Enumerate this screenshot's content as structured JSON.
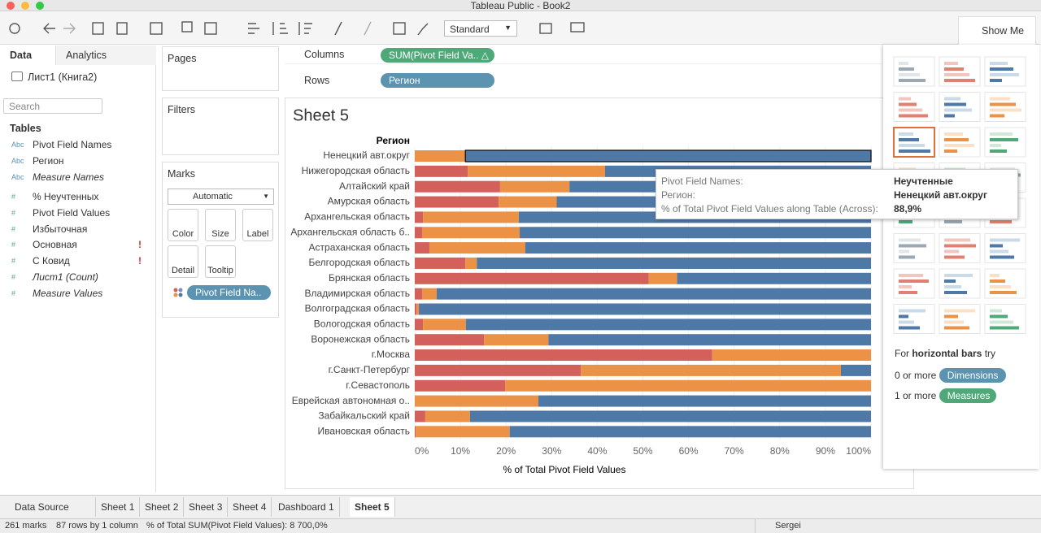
{
  "window_title": "Tableau Public - Book2",
  "toolbar": {
    "mark_style": "Standard",
    "show_me": "Show Me"
  },
  "data_pane": {
    "tabs": [
      "Data",
      "Analytics"
    ],
    "datasource": "Лист1 (Книга2)",
    "search": "Search",
    "tables_heading": "Tables",
    "fields": [
      {
        "kind": "Abc",
        "name": "Pivot Field Names"
      },
      {
        "kind": "Abc",
        "name": "Регион"
      },
      {
        "kind": "Abc",
        "name": "Measure Names",
        "italic": true
      },
      {
        "kind": "#",
        "name": "% Неучтенных"
      },
      {
        "kind": "#",
        "name": "Pivot Field Values"
      },
      {
        "kind": "#",
        "name": "Избыточная"
      },
      {
        "kind": "#",
        "name": "Основная",
        "flag": "!"
      },
      {
        "kind": "#",
        "name": "С Ковид",
        "flag": "!"
      },
      {
        "kind": "#",
        "name": "Лист1 (Count)",
        "italic": true
      },
      {
        "kind": "#",
        "name": "Measure Values",
        "italic": true
      }
    ]
  },
  "cards": {
    "pages": "Pages",
    "filters": "Filters",
    "marks": {
      "title": "Marks",
      "type": "Automatic",
      "buttons": [
        "Color",
        "Size",
        "Label",
        "Detail",
        "Tooltip"
      ],
      "pill": "Pivot Field Na.."
    }
  },
  "shelves": {
    "columns": {
      "label": "Columns",
      "pill": "SUM(Pivot Field Va..  △"
    },
    "rows": {
      "label": "Rows",
      "pill": "Регион"
    }
  },
  "chart_data": {
    "type": "stacked_bar_horizontal",
    "title": "Sheet 5",
    "y_header": "Регион",
    "x_label": "% of Total Pivot Field Values",
    "categories": [
      "Ненецкий авт.округ",
      "Нижегородская область",
      "Алтайский край",
      "Амурская область",
      "Архангельская область",
      "Архангельская область б..",
      "Астраханская область",
      "Белгородская область",
      "Брянская область",
      "Владимирская область",
      "Волгоградская область",
      "Вологодская область",
      "Воронежская область",
      "г.Москва",
      "г.Санкт-Петербург",
      "г.Севастополь",
      "Еврейская автономная о..",
      "Забайкальский край",
      "Ивановская область"
    ],
    "series": [
      {
        "color": "#d4605c",
        "values": [
          0,
          11.6,
          18.7,
          18.4,
          1.8,
          1.6,
          3.2,
          11.1,
          51.3,
          1.6,
          0.4,
          1.8,
          15.2,
          65.2,
          36.4,
          19.8,
          0,
          2.3,
          0.2
        ]
      },
      {
        "color": "#eb9246",
        "values": [
          11.1,
          30.1,
          15.2,
          12.7,
          21.0,
          21.4,
          21.0,
          2.5,
          6.2,
          3.2,
          0.5,
          9.4,
          14.1,
          34.8,
          57.0,
          80.2,
          27.1,
          9.8,
          20.6
        ]
      },
      {
        "name": "Неучтенные",
        "color": "#4e79a7",
        "values": [
          88.9,
          58.3,
          66.1,
          68.9,
          77.2,
          77.0,
          75.8,
          86.4,
          42.5,
          95.2,
          99.1,
          88.8,
          70.7,
          0,
          6.6,
          0,
          72.9,
          87.9,
          79.2
        ]
      }
    ],
    "xlim": [
      0,
      100
    ],
    "xticks": [
      {
        "value": 0,
        "label": "0%"
      },
      {
        "value": 10,
        "label": "10%"
      },
      {
        "value": 20,
        "label": "20%"
      },
      {
        "value": 30,
        "label": "30%"
      },
      {
        "value": 40,
        "label": "40%"
      },
      {
        "value": 50,
        "label": "50%"
      },
      {
        "value": 60,
        "label": "60%"
      },
      {
        "value": 70,
        "label": "70%"
      },
      {
        "value": 80,
        "label": "80%"
      },
      {
        "value": 90,
        "label": "90%"
      },
      {
        "value": 100,
        "label": "100%"
      }
    ]
  },
  "tooltip": {
    "rows": [
      [
        "Pivot Field Names:",
        "Неучтенные"
      ],
      [
        "Регион:",
        "Ненецкий авт.округ"
      ],
      [
        "% of Total Pivot Field Values along Table (Across):",
        "88,9%"
      ]
    ]
  },
  "show_me_panel": {
    "hint": {
      "prefix": "For",
      "bold": "horizontal bars",
      "suffix": "try"
    },
    "requirements": [
      {
        "count": "0 or more",
        "pill": "Dimensions"
      },
      {
        "count": "1 or more",
        "pill": "Measures"
      }
    ]
  },
  "sheet_tabs": [
    "Data Source",
    "Sheet 1",
    "Sheet 2",
    "Sheet 3",
    "Sheet 4",
    "Dashboard 1",
    "Sheet 5"
  ],
  "status": {
    "marks": "261 marks",
    "rows": "87 rows by 1 column",
    "sum": "% of Total SUM(Pivot Field Values): 8 700,0%",
    "user": "Sergei"
  }
}
